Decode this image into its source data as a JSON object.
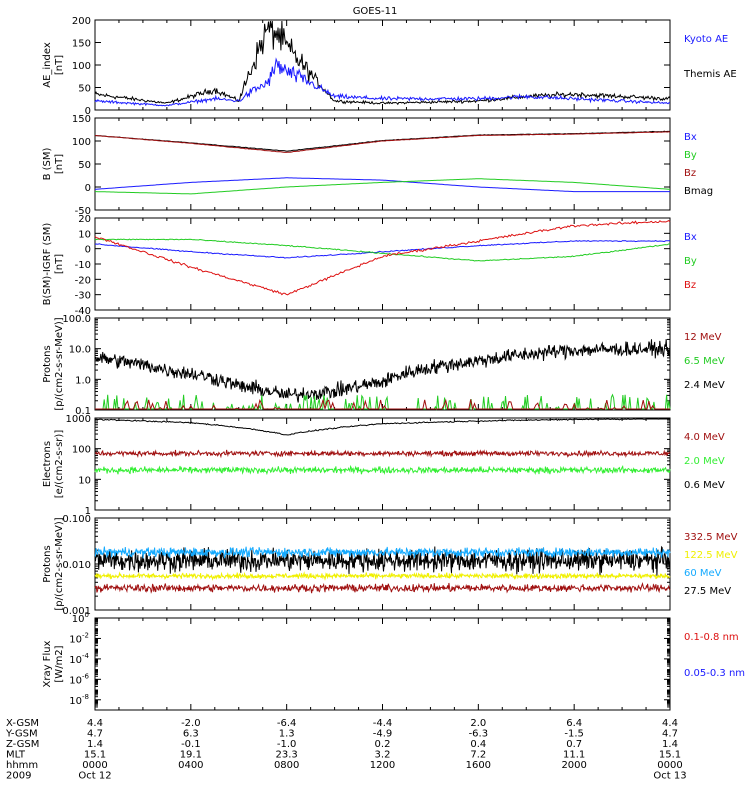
{
  "title": "GOES-11",
  "colors": {
    "black": "#000000",
    "blue": "#1a1aff",
    "red": "#dd1111",
    "green": "#22cc22",
    "darkred": "#a01010",
    "cyan": "#14aaff",
    "yellow": "#f0f000",
    "lgreen": "#33ee33"
  },
  "x_axis": {
    "rows": [
      {
        "label": "X-GSM",
        "values": [
          "4.4",
          "-2.0",
          "-6.4",
          "-4.4",
          "2.0",
          "6.4",
          "4.4"
        ]
      },
      {
        "label": "Y-GSM",
        "values": [
          "4.7",
          "6.3",
          "1.3",
          "-4.9",
          "-6.3",
          "-1.5",
          "4.7"
        ]
      },
      {
        "label": "Z-GSM",
        "values": [
          "1.4",
          "-0.1",
          "-1.0",
          "0.2",
          "0.4",
          "0.7",
          "1.4"
        ]
      },
      {
        "label": "MLT",
        "values": [
          "15.1",
          "19.1",
          "23.3",
          "3.2",
          "7.2",
          "11.1",
          "15.1"
        ]
      },
      {
        "label": "hhmm",
        "values": [
          "0000",
          "0400",
          "0800",
          "1200",
          "1600",
          "2000",
          "0000"
        ]
      },
      {
        "label": "2009",
        "values": [
          "Oct 12",
          "",
          "",
          "",
          "",
          "",
          "Oct 13"
        ]
      }
    ]
  },
  "chart_data": [
    {
      "type": "line",
      "ylabel": "AE_index [nT]",
      "yscale": "linear",
      "ylim": [
        0,
        200
      ],
      "yticks": [
        "0",
        "50",
        "100",
        "150",
        "200"
      ],
      "series": [
        {
          "name": "Kyoto AE",
          "color": "blue"
        },
        {
          "name": "Themis AE",
          "color": "black"
        }
      ],
      "approx_values": {
        "Kyoto AE": {
          "x_hours": [
            0,
            3,
            5,
            6,
            6.5,
            7.2,
            7.6,
            8,
            9,
            10,
            12,
            16,
            18,
            20,
            22,
            24
          ],
          "y": [
            20,
            10,
            25,
            20,
            40,
            60,
            100,
            85,
            60,
            30,
            25,
            25,
            30,
            25,
            20,
            15
          ]
        },
        "Themis AE": {
          "x_hours": [
            0,
            3,
            5,
            6,
            6.5,
            7.2,
            7.6,
            8,
            9,
            10,
            12,
            16,
            18,
            20,
            22,
            24
          ],
          "y": [
            35,
            15,
            45,
            20,
            90,
            180,
            170,
            140,
            80,
            20,
            15,
            20,
            30,
            35,
            30,
            25
          ]
        }
      }
    },
    {
      "type": "line",
      "ylabel": "B (SM) [nT]",
      "yscale": "linear",
      "ylim": [
        -50,
        150
      ],
      "yticks": [
        "-50",
        "0",
        "50",
        "100",
        "150"
      ],
      "series": [
        {
          "name": "Bx",
          "color": "blue"
        },
        {
          "name": "By",
          "color": "green"
        },
        {
          "name": "Bz",
          "color": "darkred"
        },
        {
          "name": "Bmag",
          "color": "black"
        }
      ],
      "approx_values": {
        "x_hours": [
          0,
          4,
          8,
          12,
          16,
          20,
          24
        ],
        "Bx": [
          -5,
          10,
          20,
          15,
          0,
          -10,
          -10
        ],
        "By": [
          -10,
          -15,
          0,
          10,
          18,
          10,
          -5
        ],
        "Bz": [
          112,
          95,
          75,
          100,
          112,
          115,
          120
        ],
        "Bmag": [
          112,
          96,
          78,
          101,
          113,
          116,
          121
        ]
      }
    },
    {
      "type": "line",
      "ylabel": "B(SM)-IGRF (SM) [nT]",
      "yscale": "linear",
      "ylim": [
        -40,
        20
      ],
      "yticks": [
        "-40",
        "-30",
        "-20",
        "-10",
        "0",
        "10",
        "20"
      ],
      "series": [
        {
          "name": "Bx",
          "color": "blue"
        },
        {
          "name": "By",
          "color": "green"
        },
        {
          "name": "Bz",
          "color": "red"
        }
      ],
      "approx_values": {
        "x_hours": [
          0,
          4,
          8,
          12,
          16,
          20,
          24
        ],
        "Bx": [
          3,
          -2,
          -6,
          -2,
          2,
          5,
          5
        ],
        "By": [
          6,
          6,
          2,
          -3,
          -8,
          -5,
          3
        ],
        "Bz": [
          8,
          -12,
          -30,
          -5,
          5,
          15,
          18
        ]
      }
    },
    {
      "type": "line",
      "ylabel": "Protons [p/(cm2-s-sr-MeV)]",
      "yscale": "log",
      "ylim": [
        0.1,
        100
      ],
      "yticks": [
        "0.1",
        "1.0",
        "10.0",
        "100.0"
      ],
      "series": [
        {
          "name": "12 MeV",
          "color": "darkred"
        },
        {
          "name": "6.5 MeV",
          "color": "green"
        },
        {
          "name": "2.4 MeV",
          "color": "black"
        }
      ]
    },
    {
      "type": "line",
      "ylabel": "Electrons [e/(cm2-s-sr)]",
      "yscale": "log",
      "ylim": [
        1,
        1000
      ],
      "yticks": [
        "1",
        "10",
        "100",
        "1000"
      ],
      "series": [
        {
          "name": "4.0 MeV",
          "color": "darkred"
        },
        {
          "name": "2.0 MeV",
          "color": "lgreen"
        },
        {
          "name": "0.6 MeV",
          "color": "black"
        }
      ]
    },
    {
      "type": "line",
      "ylabel": "Protons [p/(cm2-s-sr-MeV)]",
      "yscale": "log",
      "ylim": [
        0.001,
        0.1
      ],
      "yticks": [
        "0.001",
        "0.010",
        "0.100"
      ],
      "series": [
        {
          "name": "332.5 MeV",
          "color": "darkred"
        },
        {
          "name": "122.5 MeV",
          "color": "yellow"
        },
        {
          "name": "60 MeV",
          "color": "cyan"
        },
        {
          "name": "27.5 MeV",
          "color": "black"
        }
      ]
    },
    {
      "type": "line",
      "ylabel": "Xray Flux [W/m2]",
      "yscale": "log",
      "ylim": [
        1e-09,
        1
      ],
      "yticks": [
        "10^-8",
        "10^-6",
        "10^-4",
        "10^-2",
        "10^0"
      ],
      "series": [
        {
          "name": "0.1-0.8 nm",
          "color": "red"
        },
        {
          "name": "0.05-0.3 nm",
          "color": "blue"
        }
      ]
    }
  ]
}
